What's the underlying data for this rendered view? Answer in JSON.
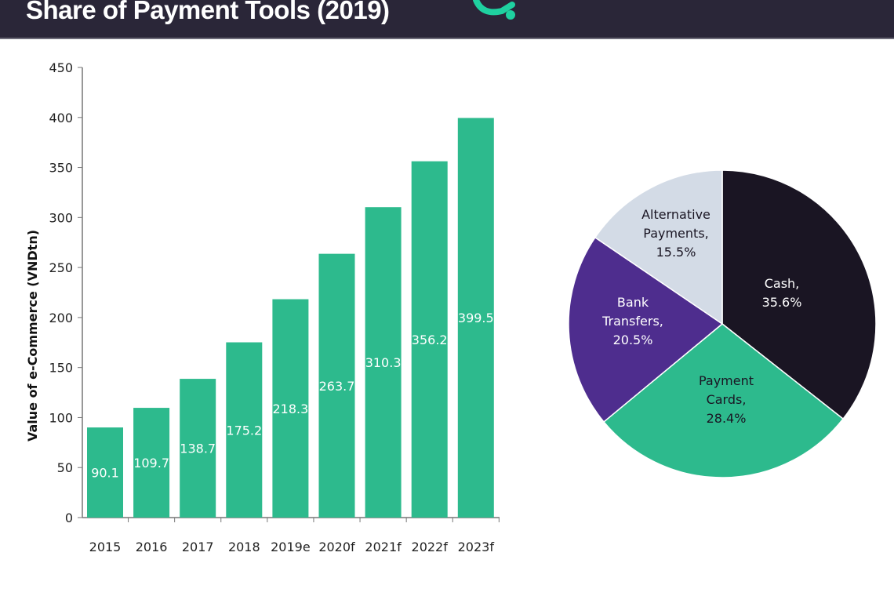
{
  "header": {
    "title": "Share of Payment Tools (2019)",
    "logo_color": "#1fd1a0"
  },
  "chart_data": [
    {
      "type": "bar",
      "categories": [
        "2015",
        "2016",
        "2017",
        "2018",
        "2019e",
        "2020f",
        "2021f",
        "2022f",
        "2023f"
      ],
      "values": [
        90.1,
        109.7,
        138.7,
        175.2,
        218.3,
        263.7,
        310.3,
        356.2,
        399.5
      ],
      "data_labels": [
        "90.1",
        "109.7",
        "138.7",
        "175.2",
        "218.3",
        "263.7",
        "310.3",
        "356.2",
        "399.5"
      ],
      "ylabel": "Value of e-Commerce (VNDtn)",
      "xlabel": "",
      "ylim": [
        0,
        450
      ],
      "yticks": [
        "0",
        "50",
        "100",
        "150",
        "200",
        "250",
        "300",
        "350",
        "400",
        "450"
      ],
      "grid": false,
      "color": "#2dba8d"
    },
    {
      "type": "pie",
      "slices": [
        {
          "label": "Cash,",
          "pct_label": "35.6%",
          "value": 35.6,
          "color": "#1a1523",
          "text_color": "#ffffff"
        },
        {
          "label": "Payment\nCards,",
          "pct_label": "28.4%",
          "value": 28.4,
          "color": "#2dba8d",
          "text_color": "#1a1523"
        },
        {
          "label": "Bank\nTransfers,",
          "pct_label": "20.5%",
          "value": 20.5,
          "color": "#4e2d8e",
          "text_color": "#ffffff"
        },
        {
          "label": "Alternative\nPayments,",
          "pct_label": "15.5%",
          "value": 15.5,
          "color": "#d3dbe6",
          "text_color": "#1a1523"
        }
      ],
      "start": "top",
      "direction": "clockwise"
    }
  ]
}
